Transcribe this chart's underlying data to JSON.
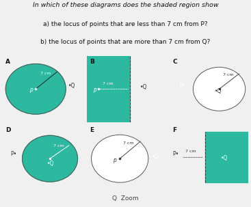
{
  "title_line1": "In which of these diagrams does the shaded region show",
  "title_line2a": "a) the locus of points that are less than 7 cm from P?",
  "title_line2b": "b) the locus of points that are more than 7 cm from Q?",
  "bg_color": "#f0f0f0",
  "teal": "#2db8a0",
  "white": "#ffffff",
  "pink": "#d4a0a0",
  "zoom_text": "Q  Zoom"
}
